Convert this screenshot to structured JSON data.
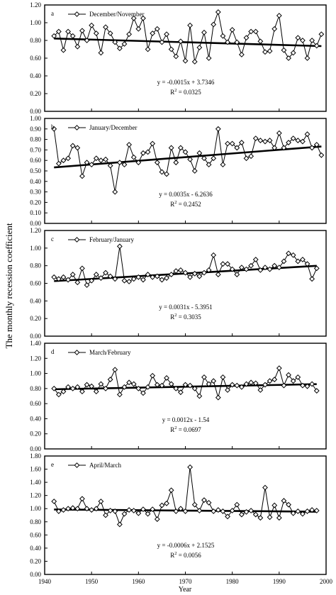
{
  "figure": {
    "ylabel": "The monthly recession coefficient",
    "xlabel": "Year",
    "x_ticks": [
      "1940",
      "1950",
      "1960",
      "1970",
      "1980",
      "1990",
      "2000"
    ]
  },
  "chart_data": [
    {
      "type": "line",
      "panel_letter": "a",
      "legend": "December/November",
      "xlim": [
        1940,
        2000
      ],
      "ylim": [
        0,
        1.2
      ],
      "y_ticks": [
        "0.00",
        "0.20",
        "0.40",
        "0.60",
        "0.80",
        "1.00",
        "1.20"
      ],
      "trend_equation": "y = -0.0015x + 3.7346",
      "r2_label": "R",
      "r2_value": " = 0.0325",
      "trend": {
        "slope": -0.0015,
        "intercept": 3.7346
      },
      "x_start": 1942,
      "values": [
        0.85,
        0.9,
        0.69,
        0.9,
        0.85,
        0.73,
        0.91,
        0.8,
        0.97,
        0.88,
        0.66,
        0.95,
        0.88,
        0.78,
        0.71,
        0.76,
        0.87,
        1.05,
        0.93,
        1.05,
        0.7,
        0.88,
        0.93,
        0.78,
        0.87,
        0.7,
        0.62,
        0.79,
        0.57,
        0.97,
        0.56,
        0.72,
        0.89,
        0.6,
        0.98,
        1.12,
        0.85,
        0.78,
        0.92,
        0.78,
        0.64,
        0.83,
        0.9,
        0.9,
        0.79,
        0.67,
        0.68,
        0.93,
        1.08,
        0.69,
        0.6,
        0.66,
        0.83,
        0.8,
        0.6,
        0.8,
        0.74,
        0.87
      ]
    },
    {
      "type": "line",
      "panel_letter": "b",
      "legend": "January/December",
      "xlim": [
        1940,
        2000
      ],
      "ylim": [
        0,
        1.0
      ],
      "y_ticks": [
        "0.00",
        "0.10",
        "0.20",
        "0.30",
        "0.40",
        "0.50",
        "0.60",
        "0.70",
        "0.80",
        "0.90",
        "1.00"
      ],
      "trend_equation": "y = 0.0035x - 6.2636",
      "r2_label": "R",
      "r2_value": " = 0.2452",
      "trend": {
        "slope": 0.0035,
        "intercept": -6.2636
      },
      "x_start": 1942,
      "values": [
        0.9,
        0.57,
        0.6,
        0.62,
        0.74,
        0.72,
        0.45,
        0.58,
        0.56,
        0.62,
        0.6,
        0.61,
        0.55,
        0.3,
        0.58,
        0.56,
        0.75,
        0.63,
        0.58,
        0.67,
        0.68,
        0.76,
        0.58,
        0.49,
        0.47,
        0.72,
        0.58,
        0.72,
        0.68,
        0.61,
        0.5,
        0.67,
        0.62,
        0.56,
        0.62,
        0.9,
        0.56,
        0.76,
        0.76,
        0.72,
        0.77,
        0.62,
        0.64,
        0.81,
        0.79,
        0.78,
        0.79,
        0.72,
        0.86,
        0.72,
        0.77,
        0.81,
        0.79,
        0.78,
        0.85,
        0.72,
        0.75,
        0.65
      ]
    },
    {
      "type": "line",
      "panel_letter": "c",
      "legend": "February/January",
      "xlim": [
        1940,
        2000
      ],
      "ylim": [
        0,
        1.2
      ],
      "y_ticks": [
        "0.00",
        "0.20",
        "0.40",
        "0.60",
        "0.80",
        "1.00",
        "1.20"
      ],
      "trend_equation": "y = 0.0031x - 5.3951",
      "r2_label": "R",
      "r2_value": " = 0.3035",
      "trend": {
        "slope": 0.0031,
        "intercept": -5.3951
      },
      "x_start": 1942,
      "values": [
        0.67,
        0.65,
        0.67,
        0.64,
        0.7,
        0.61,
        0.77,
        0.58,
        0.63,
        0.7,
        0.66,
        0.72,
        0.68,
        0.65,
        1.02,
        0.63,
        0.62,
        0.65,
        0.67,
        0.64,
        0.7,
        0.67,
        0.68,
        0.64,
        0.66,
        0.7,
        0.74,
        0.75,
        0.72,
        0.67,
        0.71,
        0.68,
        0.72,
        0.75,
        0.92,
        0.7,
        0.82,
        0.82,
        0.76,
        0.7,
        0.78,
        0.76,
        0.8,
        0.87,
        0.75,
        0.78,
        0.76,
        0.8,
        0.78,
        0.85,
        0.94,
        0.92,
        0.85,
        0.87,
        0.82,
        0.65,
        0.77
      ]
    },
    {
      "type": "line",
      "panel_letter": "d",
      "legend": "March/February",
      "xlim": [
        1940,
        2000
      ],
      "ylim": [
        0,
        1.4
      ],
      "y_ticks": [
        "0.00",
        "0.20",
        "0.40",
        "0.60",
        "0.80",
        "1.00",
        "1.20",
        "1.40"
      ],
      "trend_equation": "y = 0.0012x - 1.54",
      "r2_label": "R",
      "r2_value": " = 0.0697",
      "trend": {
        "slope": 0.0012,
        "intercept": -1.54
      },
      "x_start": 1942,
      "values": [
        0.8,
        0.72,
        0.76,
        0.82,
        0.8,
        0.82,
        0.76,
        0.85,
        0.83,
        0.76,
        0.86,
        0.8,
        0.92,
        1.05,
        0.72,
        0.82,
        0.88,
        0.86,
        0.8,
        0.74,
        0.82,
        0.97,
        0.85,
        0.84,
        0.94,
        0.86,
        0.8,
        0.75,
        0.85,
        0.84,
        0.8,
        0.7,
        0.95,
        0.86,
        0.9,
        0.68,
        0.95,
        0.78,
        0.85,
        0.84,
        0.82,
        0.86,
        0.88,
        0.87,
        0.78,
        0.85,
        0.9,
        0.92,
        1.07,
        0.84,
        0.98,
        0.9,
        0.95,
        0.84,
        0.83,
        0.86,
        0.77
      ]
    },
    {
      "type": "line",
      "panel_letter": "e",
      "legend": "April/March",
      "xlim": [
        1940,
        2000
      ],
      "ylim": [
        0,
        1.8
      ],
      "y_ticks": [
        "0.00",
        "0.20",
        "0.40",
        "0.60",
        "0.80",
        "1.00",
        "1.20",
        "1.40",
        "1.60",
        "1.80"
      ],
      "trend_equation": "y = -0.0006x + 2.1525",
      "r2_label": "R",
      "r2_value": " = 0.0056",
      "trend": {
        "slope": -0.0006,
        "intercept": 2.1525
      },
      "x_start": 1942,
      "values": [
        1.11,
        0.96,
        0.98,
        1.0,
        1.01,
        1.0,
        1.15,
        1.0,
        0.98,
        1.0,
        1.11,
        0.9,
        0.97,
        0.96,
        0.76,
        0.92,
        0.98,
        0.97,
        0.93,
        0.99,
        0.92,
        0.99,
        0.84,
        1.05,
        1.08,
        1.28,
        0.96,
        1.0,
        0.96,
        1.63,
        1.06,
        0.97,
        1.13,
        1.09,
        0.96,
        0.98,
        0.96,
        0.88,
        0.97,
        1.06,
        0.91,
        0.95,
        0.97,
        0.91,
        0.86,
        1.32,
        0.87,
        1.05,
        0.86,
        1.12,
        1.06,
        0.93,
        0.96,
        0.92,
        0.96,
        0.98,
        0.97
      ]
    }
  ]
}
